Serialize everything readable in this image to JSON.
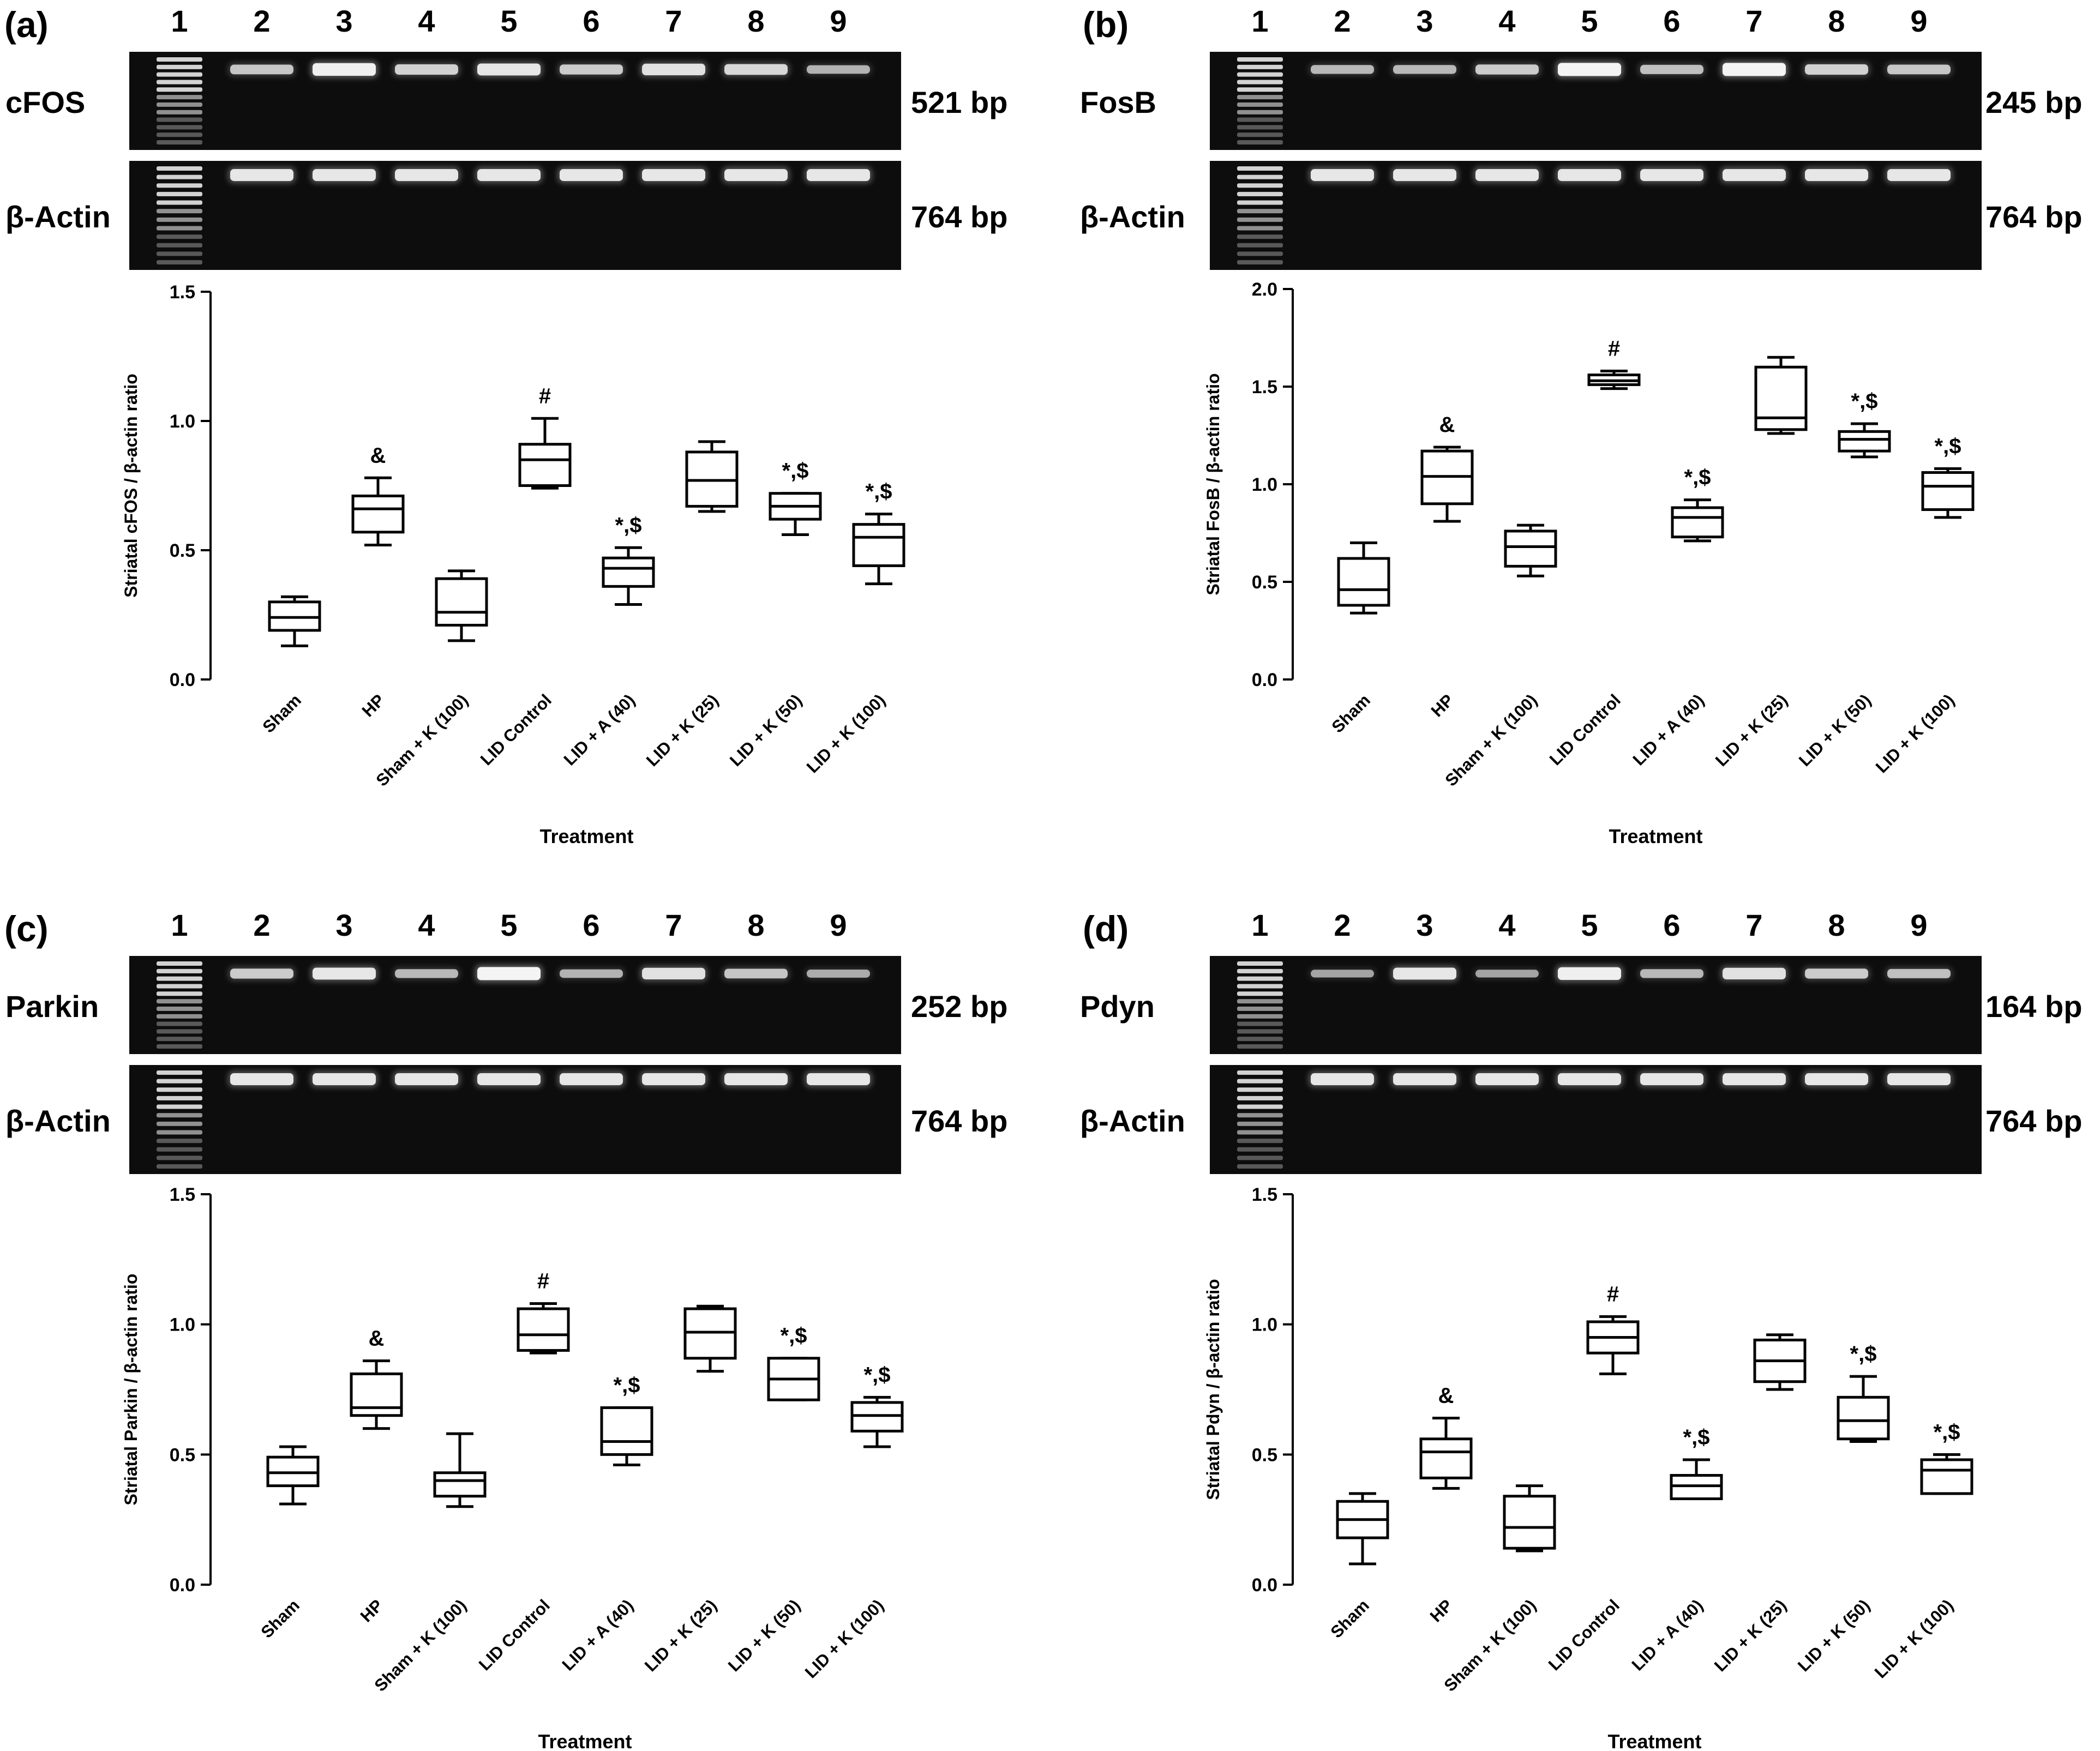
{
  "lane_numbers": [
    "1",
    "2",
    "3",
    "4",
    "5",
    "6",
    "7",
    "8",
    "9"
  ],
  "ladder_label": "ladder",
  "panels": [
    {
      "letter": "(a)",
      "gene": "cFOS",
      "gene_bp": "521 bp",
      "ref": "β-Actin",
      "ref_bp": "764 bp",
      "gene_band_intensity": [
        0.55,
        0.95,
        0.65,
        0.85,
        0.6,
        0.8,
        0.7,
        0.4
      ],
      "ref_band_intensity": [
        0.85,
        0.85,
        0.85,
        0.85,
        0.85,
        0.85,
        0.85,
        0.85
      ]
    },
    {
      "letter": "(b)",
      "gene": "FosB",
      "gene_bp": "245 bp",
      "ref": "β-Actin",
      "ref_bp": "764 bp",
      "gene_band_intensity": [
        0.45,
        0.45,
        0.6,
        1.0,
        0.5,
        1.0,
        0.65,
        0.55
      ],
      "ref_band_intensity": [
        0.85,
        0.85,
        0.85,
        0.85,
        0.85,
        0.85,
        0.85,
        0.85
      ]
    },
    {
      "letter": "(c)",
      "gene": "Parkin",
      "gene_bp": "252 bp",
      "ref": "β-Actin",
      "ref_bp": "764 bp",
      "gene_band_intensity": [
        0.6,
        0.85,
        0.45,
        1.0,
        0.4,
        0.8,
        0.55,
        0.35
      ],
      "ref_band_intensity": [
        0.85,
        0.85,
        0.85,
        0.85,
        0.85,
        0.85,
        0.85,
        0.85
      ]
    },
    {
      "letter": "(d)",
      "gene": "Pdyn",
      "gene_bp": "164 bp",
      "ref": "β-Actin",
      "ref_bp": "764 bp",
      "gene_band_intensity": [
        0.3,
        0.85,
        0.3,
        0.95,
        0.45,
        0.8,
        0.6,
        0.5
      ],
      "ref_band_intensity": [
        0.85,
        0.85,
        0.85,
        0.85,
        0.85,
        0.85,
        0.85,
        0.85
      ]
    }
  ],
  "chart_data": [
    {
      "type": "box",
      "panel": "(a)",
      "ylabel": "Striatal cFOS / β-actin ratio",
      "xlabel": "Treatment",
      "ylim": [
        0,
        1.5
      ],
      "yticks": [
        "0.0",
        "0.5",
        "1.0",
        "1.5"
      ],
      "ytick_values": [
        0,
        0.5,
        1.0,
        1.5
      ],
      "categories": [
        "Sham",
        "HP",
        "Sham + K (100)",
        "LID Control",
        "LID + A (40)",
        "LID + K (25)",
        "LID + K (50)",
        "LID + K (100)"
      ],
      "boxes": [
        {
          "min": 0.13,
          "q1": 0.19,
          "median": 0.24,
          "q3": 0.3,
          "max": 0.32,
          "annotation": ""
        },
        {
          "min": 0.52,
          "q1": 0.57,
          "median": 0.66,
          "q3": 0.71,
          "max": 0.78,
          "annotation": "&"
        },
        {
          "min": 0.15,
          "q1": 0.21,
          "median": 0.26,
          "q3": 0.39,
          "max": 0.42,
          "annotation": ""
        },
        {
          "min": 0.74,
          "q1": 0.75,
          "median": 0.85,
          "q3": 0.91,
          "max": 1.01,
          "annotation": "#"
        },
        {
          "min": 0.29,
          "q1": 0.36,
          "median": 0.43,
          "q3": 0.47,
          "max": 0.51,
          "annotation": "*,$"
        },
        {
          "min": 0.65,
          "q1": 0.67,
          "median": 0.77,
          "q3": 0.88,
          "max": 0.92,
          "annotation": ""
        },
        {
          "min": 0.56,
          "q1": 0.62,
          "median": 0.67,
          "q3": 0.72,
          "max": 0.72,
          "annotation": "*,$"
        },
        {
          "min": 0.37,
          "q1": 0.44,
          "median": 0.55,
          "q3": 0.6,
          "max": 0.64,
          "annotation": "*,$"
        }
      ]
    },
    {
      "type": "box",
      "panel": "(b)",
      "ylabel": "Striatal FosB / β-actin ratio",
      "xlabel": "Treatment",
      "ylim": [
        0,
        2.0
      ],
      "yticks": [
        "0.0",
        "0.5",
        "1.0",
        "1.5",
        "2.0"
      ],
      "ytick_values": [
        0,
        0.5,
        1.0,
        1.5,
        2.0
      ],
      "categories": [
        "Sham",
        "HP",
        "Sham + K (100)",
        "LID Control",
        "LID + A (40)",
        "LID + K (25)",
        "LID + K (50)",
        "LID + K (100)"
      ],
      "boxes": [
        {
          "min": 0.34,
          "q1": 0.38,
          "median": 0.46,
          "q3": 0.62,
          "max": 0.7,
          "annotation": ""
        },
        {
          "min": 0.81,
          "q1": 0.9,
          "median": 1.04,
          "q3": 1.17,
          "max": 1.19,
          "annotation": "&"
        },
        {
          "min": 0.53,
          "q1": 0.58,
          "median": 0.68,
          "q3": 0.76,
          "max": 0.79,
          "annotation": ""
        },
        {
          "min": 1.49,
          "q1": 1.51,
          "median": 1.53,
          "q3": 1.56,
          "max": 1.58,
          "annotation": "#"
        },
        {
          "min": 0.71,
          "q1": 0.73,
          "median": 0.83,
          "q3": 0.88,
          "max": 0.92,
          "annotation": "*,$"
        },
        {
          "min": 1.26,
          "q1": 1.28,
          "median": 1.34,
          "q3": 1.6,
          "max": 1.65,
          "annotation": ""
        },
        {
          "min": 1.14,
          "q1": 1.17,
          "median": 1.23,
          "q3": 1.27,
          "max": 1.31,
          "annotation": "*,$"
        },
        {
          "min": 0.83,
          "q1": 0.87,
          "median": 0.99,
          "q3": 1.06,
          "max": 1.08,
          "annotation": "*,$"
        }
      ]
    },
    {
      "type": "box",
      "panel": "(c)",
      "ylabel": "Striatal Parkin / β-actin ratio",
      "xlabel": "Treatment",
      "ylim": [
        0,
        1.5
      ],
      "yticks": [
        "0.0",
        "0.5",
        "1.0",
        "1.5"
      ],
      "ytick_values": [
        0,
        0.5,
        1.0,
        1.5
      ],
      "categories": [
        "Sham",
        "HP",
        "Sham + K (100)",
        "LID Control",
        "LID + A (40)",
        "LID + K (25)",
        "LID + K (50)",
        "LID + K (100)"
      ],
      "boxes": [
        {
          "min": 0.31,
          "q1": 0.38,
          "median": 0.43,
          "q3": 0.49,
          "max": 0.53,
          "annotation": ""
        },
        {
          "min": 0.6,
          "q1": 0.65,
          "median": 0.68,
          "q3": 0.81,
          "max": 0.86,
          "annotation": "&"
        },
        {
          "min": 0.3,
          "q1": 0.34,
          "median": 0.4,
          "q3": 0.43,
          "max": 0.58,
          "annotation": ""
        },
        {
          "min": 0.89,
          "q1": 0.9,
          "median": 0.96,
          "q3": 1.06,
          "max": 1.08,
          "annotation": "#"
        },
        {
          "min": 0.46,
          "q1": 0.5,
          "median": 0.55,
          "q3": 0.68,
          "max": 0.68,
          "annotation": "*,$"
        },
        {
          "min": 0.82,
          "q1": 0.87,
          "median": 0.97,
          "q3": 1.06,
          "max": 1.07,
          "annotation": ""
        },
        {
          "min": 0.71,
          "q1": 0.71,
          "median": 0.79,
          "q3": 0.87,
          "max": 0.87,
          "annotation": "*,$"
        },
        {
          "min": 0.53,
          "q1": 0.59,
          "median": 0.65,
          "q3": 0.7,
          "max": 0.72,
          "annotation": "*,$"
        }
      ]
    },
    {
      "type": "box",
      "panel": "(d)",
      "ylabel": "Striatal Pdyn / β-actin ratio",
      "xlabel": "Treatment",
      "ylim": [
        0,
        1.5
      ],
      "yticks": [
        "0.0",
        "0.5",
        "1.0",
        "1.5"
      ],
      "ytick_values": [
        0,
        0.5,
        1.0,
        1.5
      ],
      "categories": [
        "Sham",
        "HP",
        "Sham + K (100)",
        "LID Control",
        "LID + A (40)",
        "LID + K (25)",
        "LID + K (50)",
        "LID + K (100)"
      ],
      "boxes": [
        {
          "min": 0.08,
          "q1": 0.18,
          "median": 0.25,
          "q3": 0.32,
          "max": 0.35,
          "annotation": ""
        },
        {
          "min": 0.37,
          "q1": 0.41,
          "median": 0.51,
          "q3": 0.56,
          "max": 0.64,
          "annotation": "&"
        },
        {
          "min": 0.13,
          "q1": 0.14,
          "median": 0.22,
          "q3": 0.34,
          "max": 0.38,
          "annotation": ""
        },
        {
          "min": 0.81,
          "q1": 0.89,
          "median": 0.95,
          "q3": 1.01,
          "max": 1.03,
          "annotation": "#"
        },
        {
          "min": 0.33,
          "q1": 0.33,
          "median": 0.38,
          "q3": 0.42,
          "max": 0.48,
          "annotation": "*,$"
        },
        {
          "min": 0.75,
          "q1": 0.78,
          "median": 0.86,
          "q3": 0.94,
          "max": 0.96,
          "annotation": ""
        },
        {
          "min": 0.55,
          "q1": 0.56,
          "median": 0.63,
          "q3": 0.72,
          "max": 0.8,
          "annotation": "*,$"
        },
        {
          "min": 0.35,
          "q1": 0.35,
          "median": 0.44,
          "q3": 0.48,
          "max": 0.5,
          "annotation": "*,$"
        }
      ]
    }
  ]
}
